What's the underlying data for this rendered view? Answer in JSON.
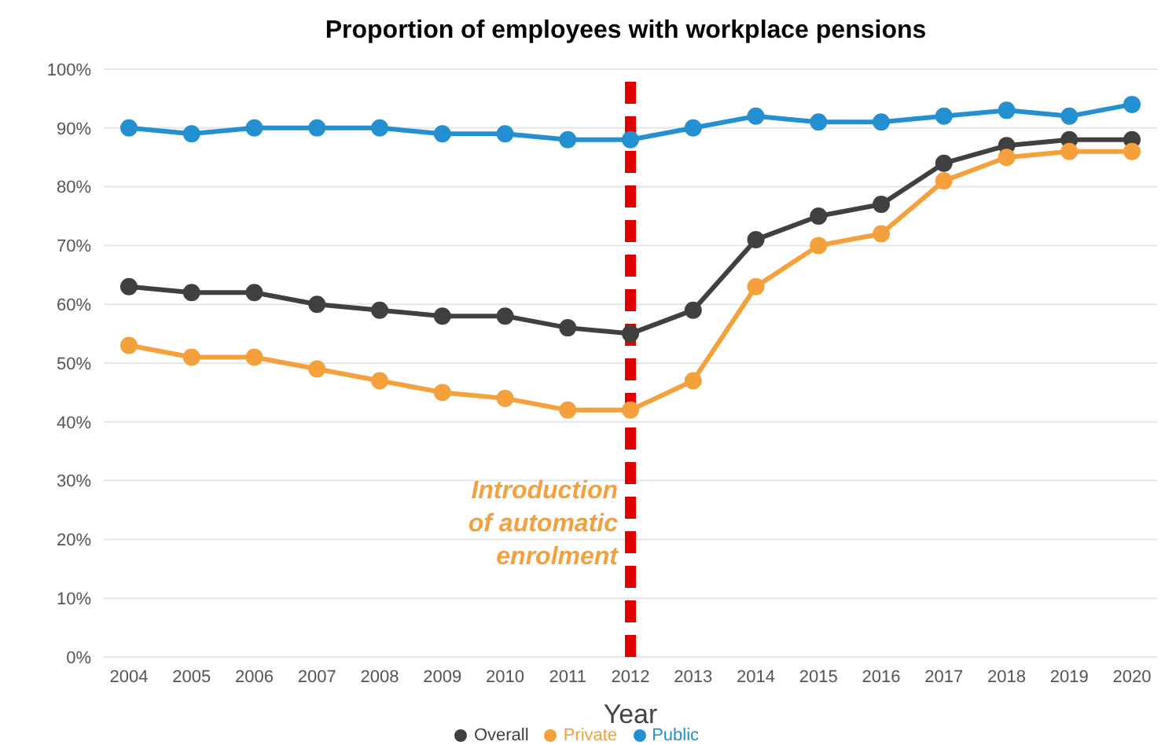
{
  "chart_data": {
    "type": "line",
    "title": "Proportion of employees with workplace pensions",
    "xlabel": "Year",
    "categories": [
      "2004",
      "2005",
      "2006",
      "2007",
      "2008",
      "2009",
      "2010",
      "2011",
      "2012",
      "2013",
      "2014",
      "2015",
      "2016",
      "2017",
      "2018",
      "2019",
      "2020"
    ],
    "series": [
      {
        "name": "Overall",
        "color": "#404040",
        "values": [
          63,
          62,
          62,
          60,
          59,
          58,
          58,
          56,
          55,
          59,
          71,
          75,
          77,
          84,
          87,
          88,
          88
        ]
      },
      {
        "name": "Private",
        "color": "#f4a03c",
        "values": [
          53,
          51,
          51,
          49,
          47,
          45,
          44,
          42,
          42,
          47,
          63,
          70,
          72,
          81,
          85,
          86,
          86
        ]
      },
      {
        "name": "Public",
        "color": "#2490d0",
        "values": [
          90,
          89,
          90,
          90,
          90,
          89,
          89,
          88,
          88,
          90,
          92,
          91,
          91,
          92,
          93,
          92,
          94
        ]
      }
    ],
    "ylim": [
      0,
      100
    ],
    "yticks": [
      {
        "value": 0,
        "label": "0%"
      },
      {
        "value": 10,
        "label": "10%"
      },
      {
        "value": 20,
        "label": "20%"
      },
      {
        "value": 30,
        "label": "30%"
      },
      {
        "value": 40,
        "label": "40%"
      },
      {
        "value": 50,
        "label": "50%"
      },
      {
        "value": 60,
        "label": "60%"
      },
      {
        "value": 70,
        "label": "70%"
      },
      {
        "value": 80,
        "label": "80%"
      },
      {
        "value": 90,
        "label": "90%"
      },
      {
        "value": 100,
        "label": "100%"
      }
    ],
    "ref_lines": [
      {
        "axis": "x",
        "value": "2012",
        "label": "Introduction of automatic enrolment",
        "color": "#e00000",
        "line_style": "dashed"
      }
    ],
    "grid": "y",
    "legend": "bottom",
    "marker": "circle",
    "line_style": "solid"
  }
}
